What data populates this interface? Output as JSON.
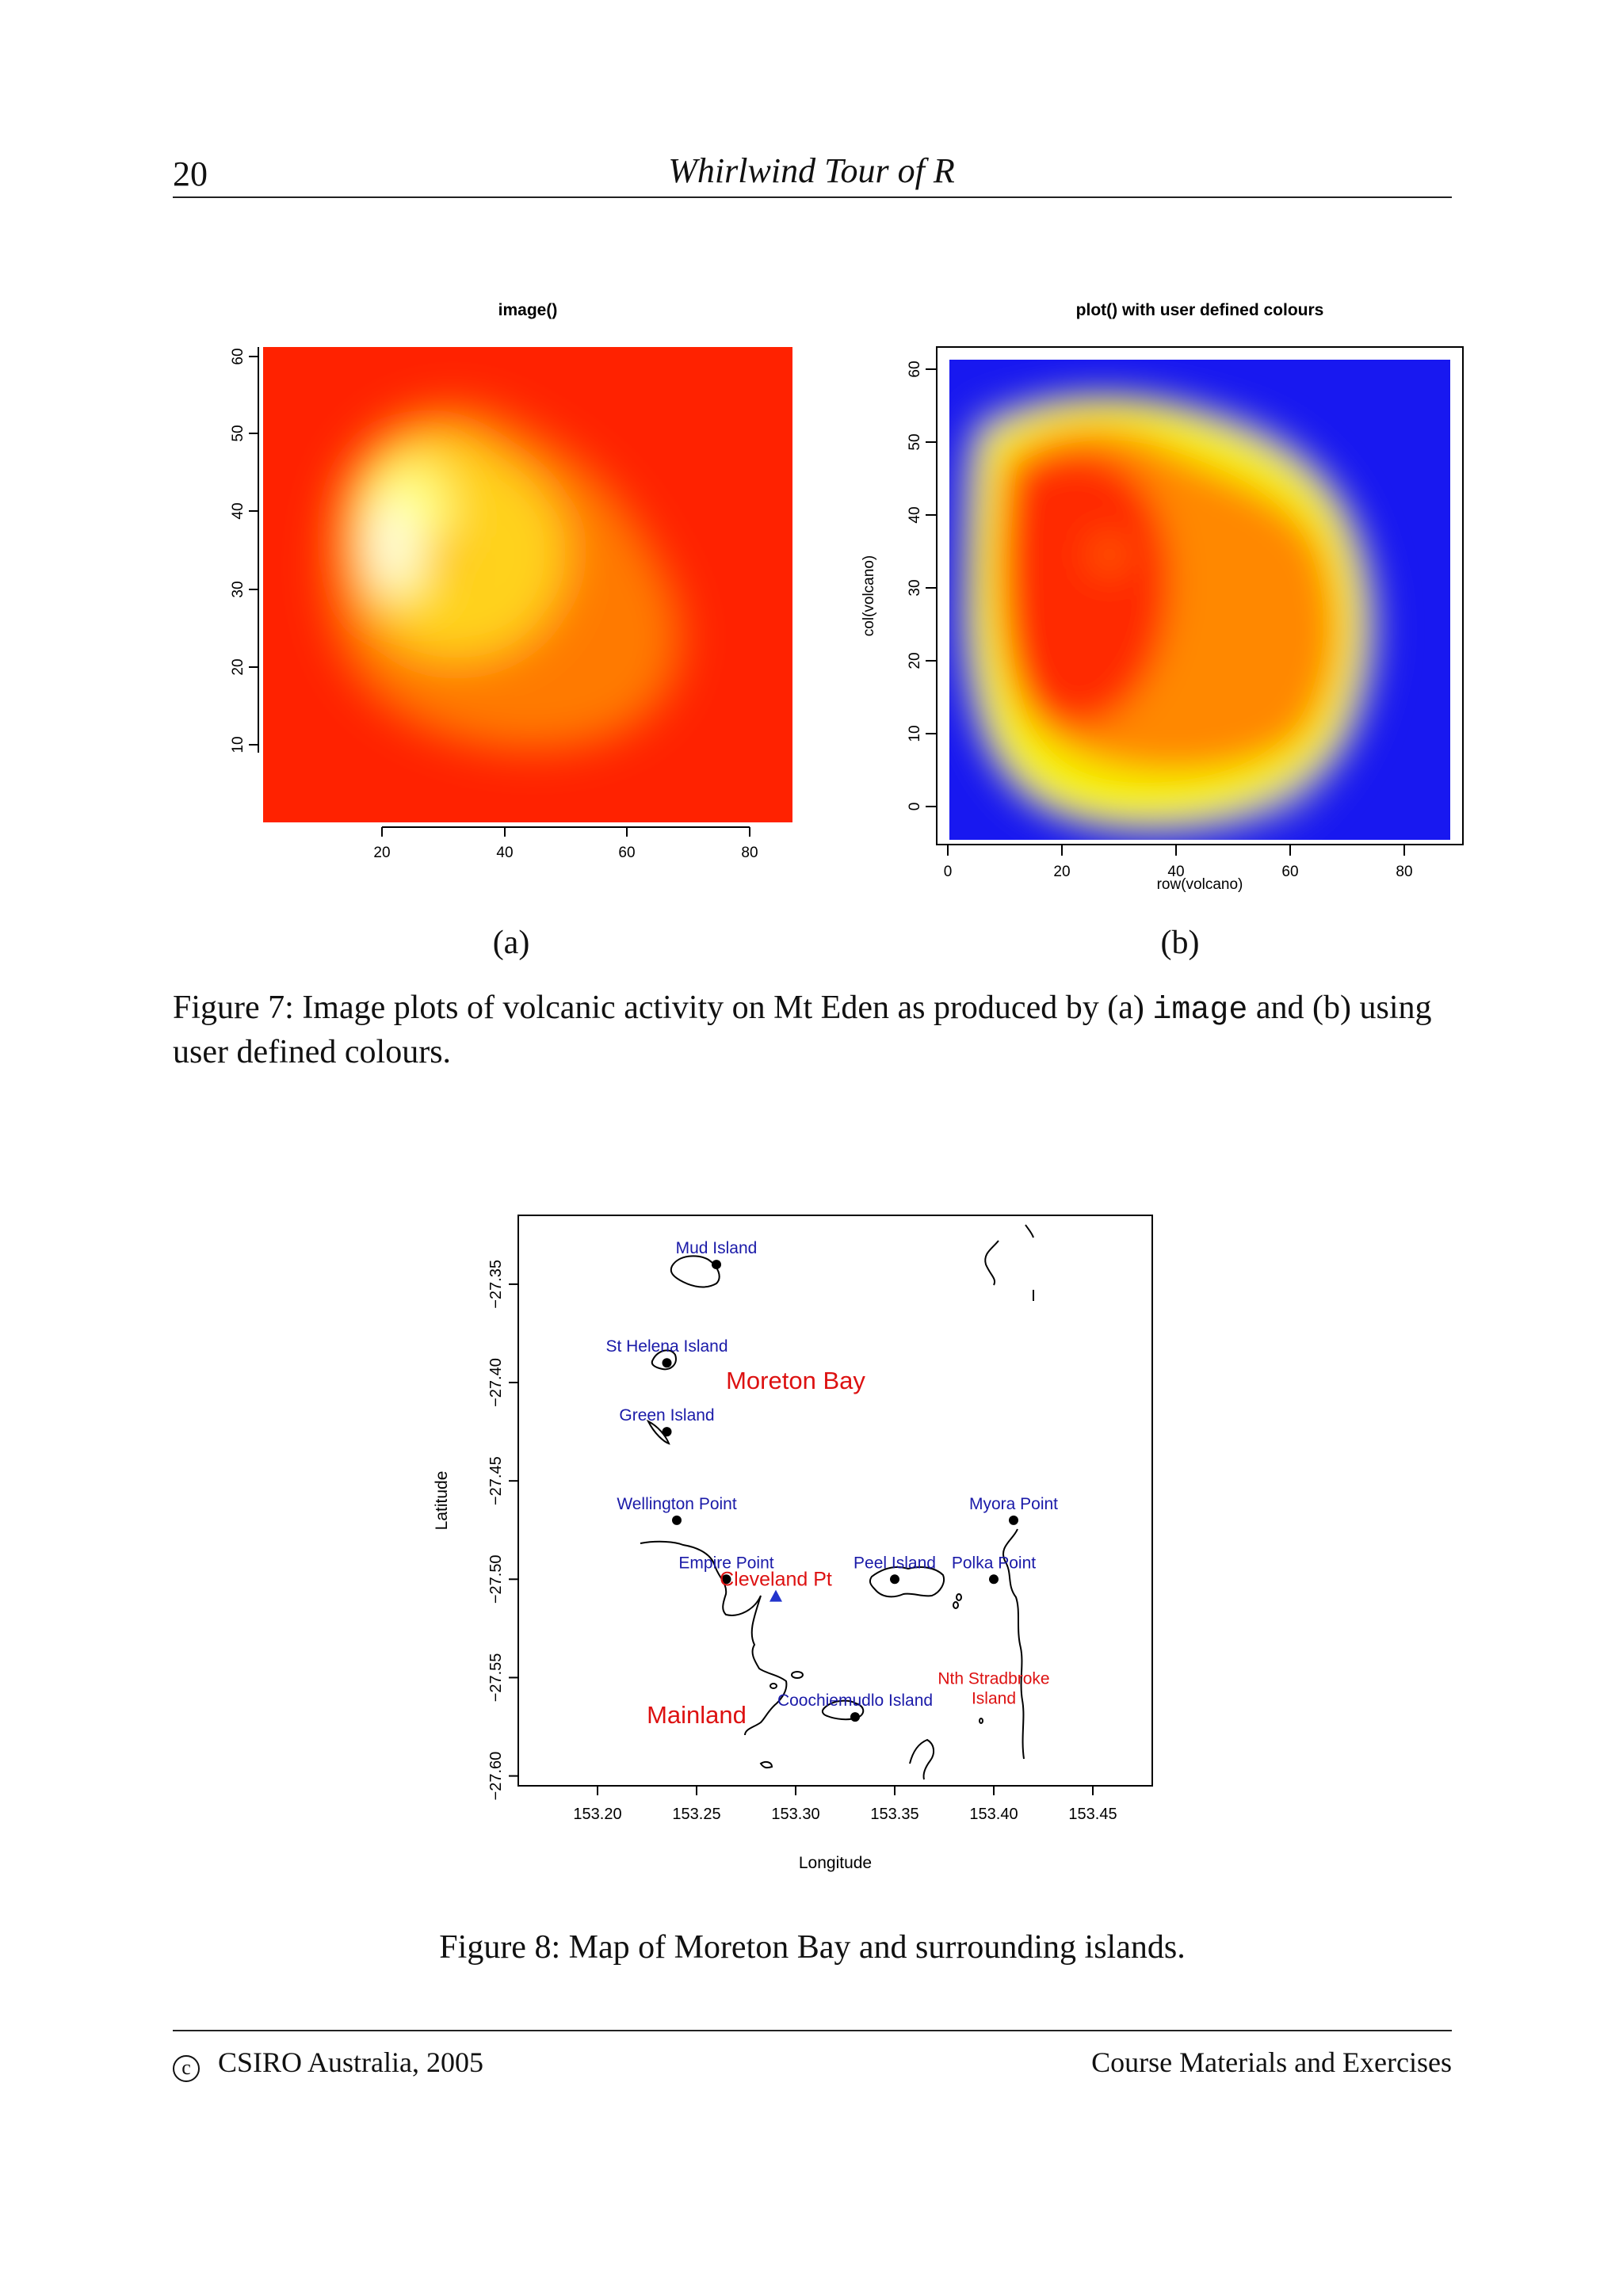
{
  "header": {
    "page_number": "20",
    "running_title": "Whirlwind Tour of R"
  },
  "figure7": {
    "panel_a": {
      "title": "image()",
      "x_ticks": [
        "20",
        "40",
        "60",
        "80"
      ],
      "y_ticks": [
        "10",
        "20",
        "30",
        "40",
        "50",
        "60"
      ],
      "label": "(a)"
    },
    "panel_b": {
      "title": "plot() with user defined colours",
      "xlabel": "row(volcano)",
      "ylabel": "col(volcano)",
      "x_ticks": [
        "0",
        "20",
        "40",
        "60",
        "80"
      ],
      "y_ticks": [
        "0",
        "10",
        "20",
        "30",
        "40",
        "50",
        "60"
      ],
      "label": "(b)"
    },
    "caption_prefix": "Figure 7: Image plots of volcanic activity on Mt Eden as produced by (a) ",
    "caption_code": "image",
    "caption_suffix": " and (b) using user defined colours."
  },
  "figure8": {
    "chart_data": {
      "type": "scatter",
      "xlabel": "Longitude",
      "ylabel": "Latitude",
      "xlim": [
        153.16,
        153.48
      ],
      "ylim": [
        -27.605,
        -27.315
      ],
      "x_ticks": [
        "153.20",
        "153.25",
        "153.30",
        "153.35",
        "153.40",
        "153.45"
      ],
      "y_ticks": [
        "−27.35",
        "−27.40",
        "−27.45",
        "−27.50",
        "−27.55",
        "−27.60"
      ],
      "points": [
        {
          "name": "Mud Island",
          "x": 153.26,
          "y": -27.34
        },
        {
          "name": "St Helena Island",
          "x": 153.235,
          "y": -27.39
        },
        {
          "name": "Green Island",
          "x": 153.235,
          "y": -27.425
        },
        {
          "name": "Wellington Point",
          "x": 153.24,
          "y": -27.47
        },
        {
          "name": "Empire Point",
          "x": 153.265,
          "y": -27.5
        },
        {
          "name": "Peel Island",
          "x": 153.35,
          "y": -27.5
        },
        {
          "name": "Polka Point",
          "x": 153.4,
          "y": -27.5
        },
        {
          "name": "Myora Point",
          "x": 153.41,
          "y": -27.47
        },
        {
          "name": "Coochiemudlo Island",
          "x": 153.33,
          "y": -27.57
        }
      ],
      "marker": {
        "name": "Cleveland Pt",
        "x": 153.29,
        "y": -27.509
      },
      "region_labels": [
        {
          "text": "Moreton Bay",
          "x": 153.3,
          "y": -27.4
        },
        {
          "text": "Mainland",
          "x": 153.25,
          "y": -27.57
        },
        {
          "text": "Nth Stradbroke",
          "x": 153.4,
          "y": -27.55
        },
        {
          "text": "Island",
          "x": 153.4,
          "y": -27.56
        }
      ]
    },
    "caption": "Figure 8: Map of Moreton Bay and surrounding islands."
  },
  "colors": {
    "point_label": "#1a1aa8",
    "region_label": "#dd1111",
    "marker": "#2233cc"
  },
  "footer": {
    "copyright_symbol": "c",
    "left": "CSIRO Australia, 2005",
    "right": "Course Materials and Exercises"
  }
}
